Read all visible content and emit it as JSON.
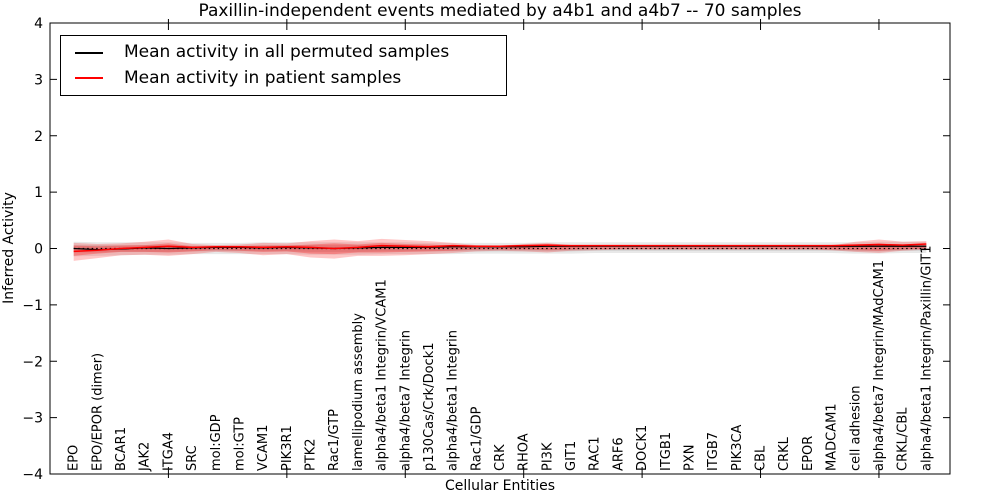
{
  "figure": {
    "title": "Paxillin-independent events mediated by a4b1 and a4b7 -- 70 samples",
    "xlabel": "Cellular Entities",
    "ylabel": "Inferred Activity"
  },
  "legend": {
    "entries": [
      {
        "label": "Mean activity in all permuted samples",
        "color": "#000000"
      },
      {
        "label": "Mean activity in patient samples",
        "color": "#ff0000"
      }
    ]
  },
  "colors": {
    "permuted_line": "#000000",
    "patient_line": "#ff0000",
    "patient_band": "#ff0000",
    "permuted_band": "#000000",
    "frame": "#000000"
  },
  "chart_data": {
    "type": "line",
    "title": "Paxillin-independent events mediated by a4b1 and a4b7 -- 70 samples",
    "xlabel": "Cellular Entities",
    "ylabel": "Inferred Activity",
    "ylim": [
      -4,
      4
    ],
    "yticks": [
      4,
      3,
      2,
      1,
      0,
      -1,
      -2,
      -3,
      -4
    ],
    "xlim": [
      0,
      38
    ],
    "xticks_major": [
      5,
      10,
      15,
      20,
      25,
      30,
      35
    ],
    "grid": false,
    "legend_position": "upper left",
    "categories": [
      "EPO",
      "EPO/EPOR (dimer)",
      "BCAR1",
      "JAK2",
      "ITGA4",
      "SRC",
      "mol:GDP",
      "mol:GTP",
      "VCAM1",
      "PIK3R1",
      "PTK2",
      "Rac1/GTP",
      "lamellipodium assembly",
      "alpha4/beta1 Integrin/VCAM1",
      "alpha4/beta7 Integrin",
      "p130Cas/Crk/Dock1",
      "alpha4/beta1 Integrin",
      "Rac1/GDP",
      "CRK",
      "RHOA",
      "PI3K",
      "GIT1",
      "RAC1",
      "ARF6",
      "DOCK1",
      "ITGB1",
      "PXN",
      "ITGB7",
      "PIK3CA",
      "CBL",
      "CRKL",
      "EPOR",
      "MADCAM1",
      "cell adhesion",
      "alpha4/beta7 Integrin/MAdCAM1",
      "CRKL/CBL",
      "alpha4/beta1 Integrin/Paxillin/GIT1"
    ],
    "series": [
      {
        "name": "Mean activity in all permuted samples",
        "color": "#000000",
        "style": "solid",
        "width": 1.2,
        "values": [
          0.0,
          -0.02,
          -0.01,
          0.01,
          0.0,
          0.01,
          0.02,
          0.02,
          0.01,
          0.02,
          0.01,
          0.0,
          0.01,
          0.02,
          0.02,
          0.02,
          0.03,
          0.03,
          0.03,
          0.03,
          0.04,
          0.04,
          0.04,
          0.04,
          0.04,
          0.04,
          0.04,
          0.04,
          0.04,
          0.04,
          0.04,
          0.04,
          0.04,
          0.04,
          0.04,
          0.04,
          0.04
        ]
      },
      {
        "name": "Mean activity in patient samples",
        "color": "#ff0000",
        "style": "solid",
        "width": 1.5,
        "values": [
          -0.05,
          -0.03,
          0.0,
          0.02,
          0.04,
          0.02,
          0.03,
          0.03,
          0.02,
          0.03,
          0.02,
          0.0,
          0.02,
          0.05,
          0.04,
          0.03,
          0.05,
          0.04,
          0.04,
          0.05,
          0.06,
          0.05,
          0.05,
          0.05,
          0.05,
          0.05,
          0.05,
          0.05,
          0.05,
          0.05,
          0.05,
          0.05,
          0.05,
          0.06,
          0.07,
          0.06,
          0.08
        ]
      }
    ],
    "reference_line": {
      "y": 0,
      "style": "dotted",
      "color": "#000000"
    },
    "bands": [
      {
        "name": "permuted samples outer range",
        "color": "#000000",
        "alpha": 0.09,
        "upper": [
          0.12,
          0.11,
          0.11,
          0.11,
          0.11,
          0.1,
          0.1,
          0.1,
          0.11,
          0.11,
          0.11,
          0.11,
          0.11,
          0.11,
          0.11,
          0.1,
          0.1,
          0.1,
          0.1,
          0.1,
          0.11,
          0.11,
          0.11,
          0.11,
          0.11,
          0.11,
          0.11,
          0.11,
          0.11,
          0.11,
          0.11,
          0.11,
          0.11,
          0.11,
          0.12,
          0.12,
          0.12
        ],
        "lower": [
          -0.14,
          -0.13,
          -0.12,
          -0.11,
          -0.11,
          -0.1,
          -0.1,
          -0.1,
          -0.1,
          -0.1,
          -0.11,
          -0.11,
          -0.11,
          -0.1,
          -0.1,
          -0.1,
          -0.1,
          -0.09,
          -0.09,
          -0.09,
          -0.09,
          -0.09,
          -0.08,
          -0.08,
          -0.08,
          -0.08,
          -0.08,
          -0.08,
          -0.08,
          -0.08,
          -0.08,
          -0.08,
          -0.08,
          -0.09,
          -0.09,
          -0.08,
          -0.08
        ]
      },
      {
        "name": "permuted samples inner range",
        "color": "#000000",
        "alpha": 0.1,
        "upper": [
          0.06,
          0.06,
          0.06,
          0.06,
          0.06,
          0.05,
          0.05,
          0.05,
          0.06,
          0.06,
          0.06,
          0.06,
          0.06,
          0.06,
          0.06,
          0.05,
          0.05,
          0.05,
          0.05,
          0.05,
          0.06,
          0.06,
          0.06,
          0.06,
          0.06,
          0.06,
          0.06,
          0.06,
          0.06,
          0.06,
          0.06,
          0.06,
          0.06,
          0.06,
          0.06,
          0.06,
          0.06
        ],
        "lower": [
          -0.07,
          -0.07,
          -0.06,
          -0.06,
          -0.06,
          -0.05,
          -0.05,
          -0.05,
          -0.05,
          -0.05,
          -0.06,
          -0.06,
          -0.06,
          -0.05,
          -0.05,
          -0.05,
          -0.05,
          -0.05,
          -0.05,
          -0.05,
          -0.05,
          -0.05,
          -0.04,
          -0.04,
          -0.04,
          -0.04,
          -0.04,
          -0.04,
          -0.04,
          -0.04,
          -0.04,
          -0.04,
          -0.04,
          -0.05,
          -0.05,
          -0.04,
          -0.04
        ]
      },
      {
        "name": "patient samples outer range",
        "color": "#ff0000",
        "alpha": 0.22,
        "upper": [
          0.1,
          0.08,
          0.09,
          0.12,
          0.16,
          0.08,
          0.06,
          0.07,
          0.1,
          0.09,
          0.13,
          0.16,
          0.13,
          0.17,
          0.15,
          0.13,
          0.1,
          0.06,
          0.05,
          0.08,
          0.1,
          0.05,
          0.04,
          0.03,
          0.03,
          0.03,
          0.03,
          0.03,
          0.03,
          0.03,
          0.03,
          0.03,
          0.05,
          0.12,
          0.16,
          0.12,
          0.13
        ],
        "lower": [
          -0.22,
          -0.17,
          -0.12,
          -0.11,
          -0.13,
          -0.1,
          -0.06,
          -0.08,
          -0.12,
          -0.1,
          -0.16,
          -0.18,
          -0.13,
          -0.13,
          -0.12,
          -0.1,
          -0.08,
          -0.05,
          -0.04,
          -0.05,
          -0.07,
          -0.04,
          -0.03,
          -0.02,
          -0.02,
          -0.02,
          -0.02,
          -0.02,
          -0.02,
          -0.02,
          -0.02,
          -0.02,
          -0.03,
          -0.06,
          -0.08,
          -0.04,
          -0.02
        ]
      },
      {
        "name": "patient samples inner range",
        "color": "#ff0000",
        "alpha": 0.28,
        "upper": [
          0.05,
          0.04,
          0.05,
          0.06,
          0.09,
          0.04,
          0.03,
          0.04,
          0.05,
          0.05,
          0.07,
          0.09,
          0.07,
          0.1,
          0.08,
          0.07,
          0.05,
          0.03,
          0.03,
          0.04,
          0.06,
          0.03,
          0.02,
          0.02,
          0.02,
          0.02,
          0.02,
          0.02,
          0.02,
          0.02,
          0.02,
          0.02,
          0.03,
          0.07,
          0.09,
          0.07,
          0.08
        ],
        "lower": [
          -0.13,
          -0.09,
          -0.06,
          -0.06,
          -0.07,
          -0.05,
          -0.03,
          -0.04,
          -0.06,
          -0.05,
          -0.09,
          -0.1,
          -0.07,
          -0.07,
          -0.06,
          -0.05,
          -0.04,
          -0.02,
          -0.02,
          -0.02,
          -0.03,
          -0.02,
          -0.01,
          -0.01,
          -0.01,
          -0.01,
          -0.01,
          -0.01,
          -0.01,
          -0.01,
          -0.01,
          -0.01,
          -0.02,
          -0.03,
          -0.04,
          -0.02,
          0.0
        ]
      }
    ]
  }
}
